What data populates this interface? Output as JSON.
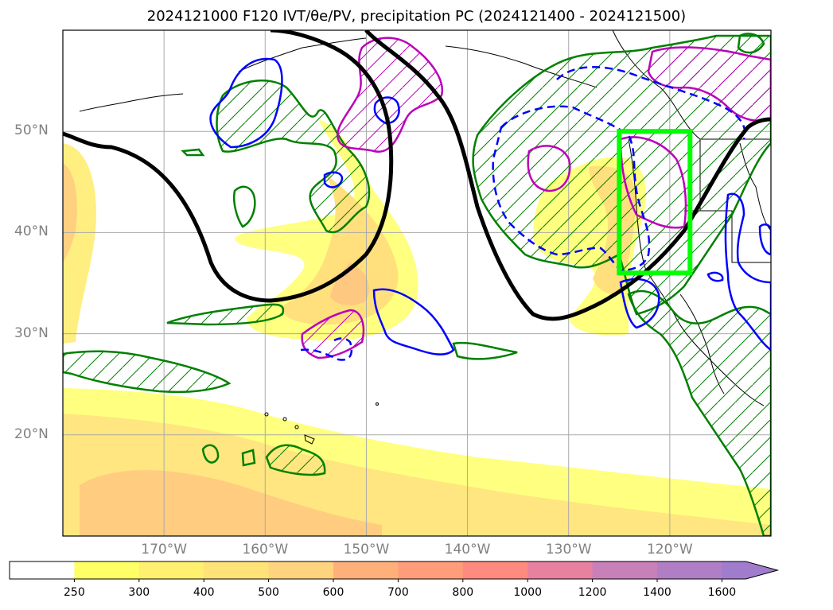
{
  "title": "2024121000 F120 IVT/θe/PV, precipitation PC (2024121400 - 2024121500)",
  "map": {
    "extent": {
      "lon": [
        -180,
        -110
      ],
      "lat": [
        10,
        60
      ]
    },
    "gridlines": true,
    "lon_ticks": [
      {
        "value": -170,
        "label": "170°W"
      },
      {
        "value": -160,
        "label": "160°W"
      },
      {
        "value": -150,
        "label": "150°W"
      },
      {
        "value": -140,
        "label": "140°W"
      },
      {
        "value": -130,
        "label": "130°W"
      },
      {
        "value": -120,
        "label": "120°W"
      }
    ],
    "lat_ticks": [
      {
        "value": 50,
        "label": "50°N"
      },
      {
        "value": 40,
        "label": "40°N"
      },
      {
        "value": 30,
        "label": "30°N"
      },
      {
        "value": 20,
        "label": "20°N"
      }
    ],
    "highlight_box": {
      "lon": [
        -125,
        -118
      ],
      "lat": [
        36,
        50
      ],
      "color": "#00ff00"
    },
    "colors": {
      "theta_e_contour": "#000000",
      "pv_positive": "#008000",
      "pv_negative": "#bb00bb",
      "pv_blue": "#0000ff",
      "coastline": "#000000"
    }
  },
  "colorbar": {
    "levels": [
      250,
      300,
      400,
      500,
      600,
      700,
      800,
      1000,
      1200,
      1400,
      1600
    ],
    "colors": [
      "#ffffff",
      "#ffff66",
      "#fff070",
      "#ffe278",
      "#ffd47e",
      "#ffb07a",
      "#ff9c7a",
      "#ff8a80",
      "#e880a0",
      "#c880b8",
      "#b07ec4",
      "#a07ccc"
    ],
    "extend": "max"
  }
}
